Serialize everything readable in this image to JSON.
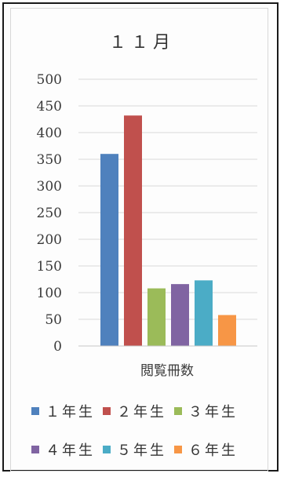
{
  "chart_data": {
    "type": "bar",
    "title": "１１月",
    "xlabel": "閲覧冊数",
    "ylabel": "",
    "ylim": [
      0,
      500
    ],
    "yticks": [
      0,
      50,
      100,
      150,
      200,
      250,
      300,
      350,
      400,
      450,
      500
    ],
    "grid": true,
    "legend_position": "bottom",
    "categories": [
      "閲覧冊数"
    ],
    "series": [
      {
        "name": "１年生",
        "values": [
          360
        ],
        "color": "#4f81bd"
      },
      {
        "name": "２年生",
        "values": [
          432
        ],
        "color": "#c0504d"
      },
      {
        "name": "３年生",
        "values": [
          108
        ],
        "color": "#9bbb59"
      },
      {
        "name": "４年生",
        "values": [
          116
        ],
        "color": "#8064a2"
      },
      {
        "name": "５年生",
        "values": [
          123
        ],
        "color": "#4bacc6"
      },
      {
        "name": "６年生",
        "values": [
          58
        ],
        "color": "#f79646"
      }
    ]
  }
}
